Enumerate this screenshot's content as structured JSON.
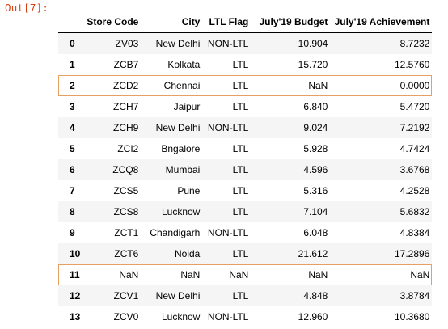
{
  "prompt": "Out[7]:",
  "table": {
    "columns": [
      "",
      "Store Code",
      "City",
      "LTL Flag",
      "July'19 Budget",
      "July'19 Achievement"
    ],
    "rows": [
      {
        "index": "0",
        "store_code": "ZV03",
        "city": "New Delhi",
        "ltl_flag": "NON-LTL",
        "budget": "10.904",
        "achievement": "8.7232"
      },
      {
        "index": "1",
        "store_code": "ZCB7",
        "city": "Kolkata",
        "ltl_flag": "LTL",
        "budget": "15.720",
        "achievement": "12.5760"
      },
      {
        "index": "2",
        "store_code": "ZCD2",
        "city": "Chennai",
        "ltl_flag": "LTL",
        "budget": "NaN",
        "achievement": "0.0000",
        "highlighted": true
      },
      {
        "index": "3",
        "store_code": "ZCH7",
        "city": "Jaipur",
        "ltl_flag": "LTL",
        "budget": "6.840",
        "achievement": "5.4720"
      },
      {
        "index": "4",
        "store_code": "ZCH9",
        "city": "New Delhi",
        "ltl_flag": "NON-LTL",
        "budget": "9.024",
        "achievement": "7.2192"
      },
      {
        "index": "5",
        "store_code": "ZCI2",
        "city": "Bngalore",
        "ltl_flag": "LTL",
        "budget": "5.928",
        "achievement": "4.7424"
      },
      {
        "index": "6",
        "store_code": "ZCQ8",
        "city": "Mumbai",
        "ltl_flag": "LTL",
        "budget": "4.596",
        "achievement": "3.6768"
      },
      {
        "index": "7",
        "store_code": "ZCS5",
        "city": "Pune",
        "ltl_flag": "LTL",
        "budget": "5.316",
        "achievement": "4.2528"
      },
      {
        "index": "8",
        "store_code": "ZCS8",
        "city": "Lucknow",
        "ltl_flag": "LTL",
        "budget": "7.104",
        "achievement": "5.6832"
      },
      {
        "index": "9",
        "store_code": "ZCT1",
        "city": "Chandigarh",
        "ltl_flag": "NON-LTL",
        "budget": "6.048",
        "achievement": "4.8384"
      },
      {
        "index": "10",
        "store_code": "ZCT6",
        "city": "Noida",
        "ltl_flag": "LTL",
        "budget": "21.612",
        "achievement": "17.2896"
      },
      {
        "index": "11",
        "store_code": "NaN",
        "city": "NaN",
        "ltl_flag": "NaN",
        "budget": "NaN",
        "achievement": "NaN",
        "highlighted": true
      },
      {
        "index": "12",
        "store_code": "ZCV1",
        "city": "New Delhi",
        "ltl_flag": "LTL",
        "budget": "4.848",
        "achievement": "3.8784"
      },
      {
        "index": "13",
        "store_code": "ZCV0",
        "city": "Lucknow",
        "ltl_flag": "NON-LTL",
        "budget": "12.960",
        "achievement": "10.3680"
      }
    ]
  },
  "colors": {
    "prompt": "#d84315",
    "highlight_border": "#e8a060",
    "stripe": "#f5f5f5"
  }
}
